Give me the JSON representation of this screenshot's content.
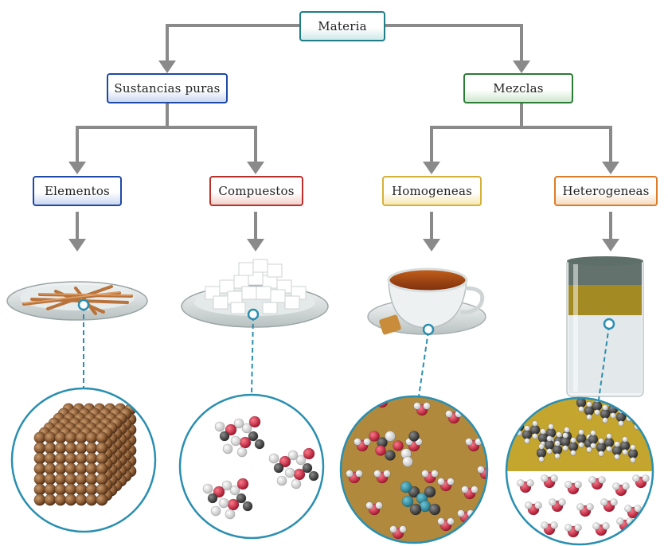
{
  "diagram": {
    "root": "Materia",
    "level1": {
      "left": "Sustancias puras",
      "right": "Mezclas"
    },
    "level2": {
      "elements": "Elementos",
      "compounds": "Compuestos",
      "homogeneous": "Homogeneas",
      "heterogeneous": "Heterogeneas"
    }
  },
  "colors": {
    "root_border": "#1f7e85",
    "pure_border": "#1f49a6",
    "mixtures_border": "#2b7c35",
    "elements_border": "#1f49a6",
    "compounds_border": "#b8302a",
    "homogeneous_border": "#d6b137",
    "heterogeneous_border": "#dc7c28",
    "arrow": "#8a8a8a",
    "callout": "#2a8fb0"
  },
  "icons": [
    "copper-rods-dish-icon",
    "sugar-cubes-dish-icon",
    "tea-cup-icon",
    "layered-liquid-glass-icon",
    "copper-atom-lattice-icon",
    "sugar-molecules-icon",
    "tea-solution-molecules-icon",
    "oil-water-molecules-icon"
  ]
}
